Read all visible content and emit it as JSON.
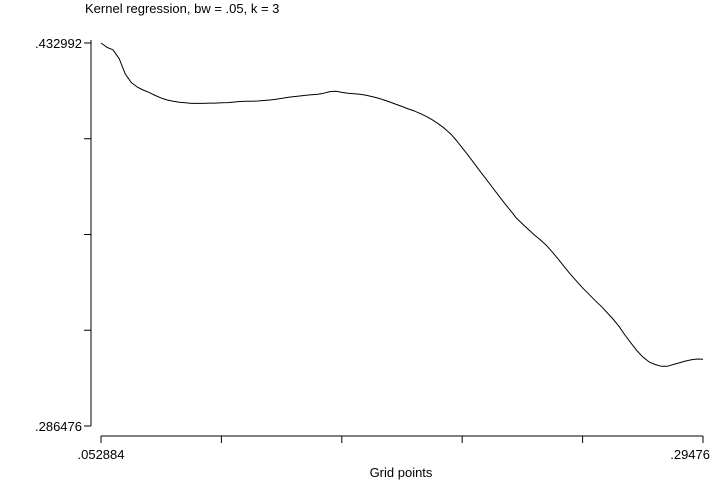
{
  "chart_data": {
    "type": "line",
    "title": "Kernel regression, bw = .05, k = 3",
    "xlabel": "Grid points",
    "ylabel": "",
    "xlim": [
      0.052884,
      0.29476
    ],
    "ylim": [
      0.286476,
      0.432992
    ],
    "x_tick_labels": [
      ".052884",
      "",
      "",
      "",
      "",
      ".29476"
    ],
    "y_tick_labels": [
      ".286476",
      "",
      "",
      "",
      ".432992"
    ],
    "grid": false,
    "legend": "none",
    "series": [
      {
        "color": "#000000",
        "x": [
          0.052884,
          0.0553,
          0.0577,
          0.0602,
          0.0626,
          0.065,
          0.0674,
          0.0698,
          0.0723,
          0.0747,
          0.0771,
          0.0795,
          0.0819,
          0.0844,
          0.0868,
          0.0892,
          0.0916,
          0.094,
          0.0965,
          0.0989,
          0.1013,
          0.1037,
          0.1061,
          0.1086,
          0.111,
          0.1134,
          0.1158,
          0.1182,
          0.1207,
          0.1231,
          0.1255,
          0.1279,
          0.1303,
          0.1328,
          0.1352,
          0.1376,
          0.14,
          0.1424,
          0.1449,
          0.1473,
          0.1497,
          0.1521,
          0.1545,
          0.157,
          0.1594,
          0.1618,
          0.1642,
          0.1666,
          0.1691,
          0.1715,
          0.1739,
          0.1763,
          0.1787,
          0.1812,
          0.1836,
          0.186,
          0.1884,
          0.1908,
          0.1933,
          0.1957,
          0.1981,
          0.2005,
          0.2029,
          0.2054,
          0.2078,
          0.2102,
          0.2126,
          0.215,
          0.2175,
          0.2199,
          0.2223,
          0.2247,
          0.2271,
          0.2296,
          0.232,
          0.2344,
          0.2368,
          0.2392,
          0.2417,
          0.2441,
          0.2465,
          0.2489,
          0.2513,
          0.2538,
          0.2562,
          0.2586,
          0.261,
          0.2634,
          0.2659,
          0.2683,
          0.2707,
          0.2731,
          0.2755,
          0.278,
          0.2804,
          0.2828,
          0.2852,
          0.2876,
          0.2901,
          0.2925,
          0.29476
        ],
        "y": [
          0.433,
          0.4313,
          0.4304,
          0.427,
          0.4212,
          0.4179,
          0.4162,
          0.415,
          0.414,
          0.4129,
          0.4119,
          0.4112,
          0.4107,
          0.4103,
          0.4101,
          0.4099,
          0.4099,
          0.4099,
          0.41,
          0.41,
          0.4101,
          0.4102,
          0.4104,
          0.4106,
          0.4107,
          0.4107,
          0.4108,
          0.411,
          0.4112,
          0.4115,
          0.4118,
          0.4122,
          0.4125,
          0.4127,
          0.413,
          0.4132,
          0.4134,
          0.4138,
          0.4144,
          0.4145,
          0.4141,
          0.4138,
          0.4136,
          0.4134,
          0.413,
          0.4125,
          0.4119,
          0.4112,
          0.4104,
          0.4095,
          0.4087,
          0.4078,
          0.407,
          0.406,
          0.4049,
          0.4036,
          0.4021,
          0.4004,
          0.3983,
          0.3957,
          0.3928,
          0.3899,
          0.3868,
          0.3837,
          0.3807,
          0.3777,
          0.3747,
          0.3717,
          0.3688,
          0.3659,
          0.3637,
          0.3616,
          0.3595,
          0.3575,
          0.3554,
          0.3528,
          0.3501,
          0.3472,
          0.3443,
          0.3417,
          0.3392,
          0.3369,
          0.3346,
          0.3323,
          0.3299,
          0.3274,
          0.3246,
          0.3213,
          0.3181,
          0.3152,
          0.3128,
          0.311,
          0.31,
          0.3093,
          0.3093,
          0.31,
          0.3106,
          0.3113,
          0.3118,
          0.3121,
          0.312
        ]
      }
    ]
  }
}
